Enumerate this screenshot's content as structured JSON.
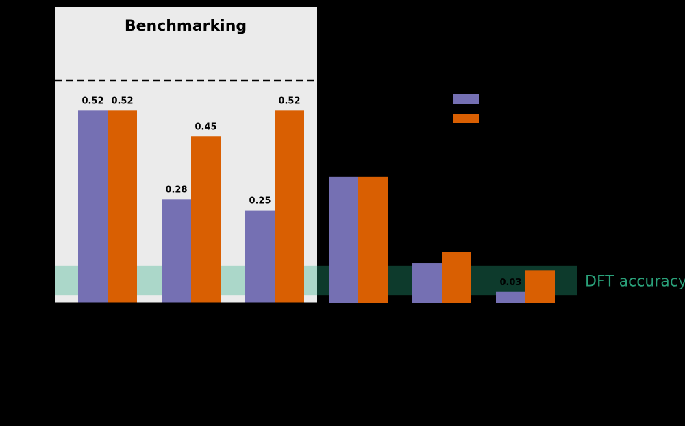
{
  "chart_data": {
    "type": "bar",
    "title": "",
    "xlabel": "",
    "ylabel": "",
    "ylim": [
      0,
      0.6
    ],
    "categories": [
      "",
      "",
      "",
      "",
      "",
      ""
    ],
    "series": [
      {
        "values": [
          0.52,
          0.28,
          0.25,
          0.34,
          0.107,
          0.03
        ],
        "labels": [
          "0.52",
          "0.28",
          "0.25",
          "",
          "",
          "0.03"
        ]
      },
      {
        "values": [
          0.52,
          0.45,
          0.52,
          0.34,
          0.137,
          0.088
        ],
        "labels": [
          "0.52",
          "0.45",
          "0.52",
          "",
          "",
          ""
        ]
      }
    ],
    "benchmark_region": {
      "label": "Benchmarking",
      "categories": [
        0,
        1,
        2
      ]
    },
    "reference_line": {
      "value": 0.6,
      "style": "dashed"
    },
    "band": {
      "label": "DFT accuracy",
      "from": 0.02,
      "to": 0.1
    },
    "legend": {
      "placement": "top-right",
      "entries": [
        "",
        ""
      ]
    },
    "grid": false
  },
  "colors": {
    "background": "#000000",
    "benchmark_bg": "#ebebeb",
    "series_1": "#7570b3",
    "series_2": "#d95f02",
    "band_light": "#abd7c9",
    "band_dark": "#0d3a2c",
    "band_text": "#2aa17a"
  }
}
